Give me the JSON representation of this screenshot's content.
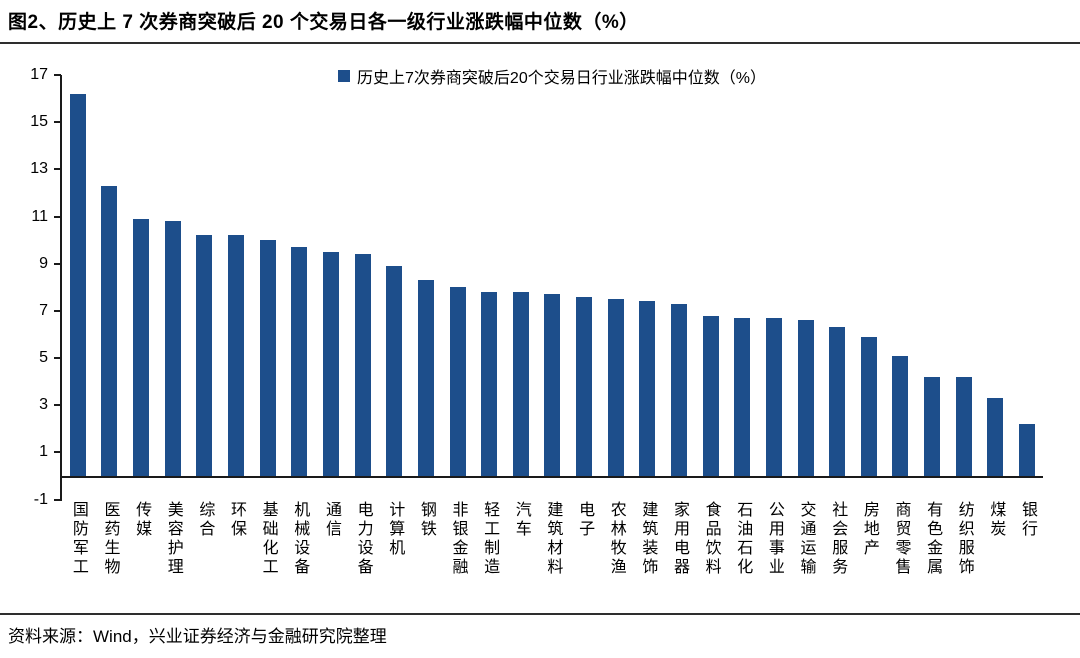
{
  "title": "图2、历史上 7 次券商突破后 20 个交易日各一级行业涨跌幅中位数（%）",
  "source": "资料来源：Wind，兴业证券经济与金融研究院整理",
  "colors": {
    "bar": "#1d4e8b",
    "axis": "#1a1a1a",
    "rule": "#2e2e2e"
  },
  "chart_data": {
    "type": "bar",
    "title": "历史上 7 次券商突破后 20 个交易日各一级行业涨跌幅中位数（%）",
    "legend": "历史上7次券商突破后20个交易日行业涨跌幅中位数（%）",
    "legend_position": "top-center",
    "grid": false,
    "xlabel": "",
    "ylabel": "",
    "ylim": [
      -1,
      17
    ],
    "y_ticks": [
      17,
      15,
      13,
      11,
      9,
      7,
      5,
      3,
      1,
      -1
    ],
    "categories": [
      "国防军工",
      "医药生物",
      "传媒",
      "美容护理",
      "综合",
      "环保",
      "基础化工",
      "机械设备",
      "通信",
      "电力设备",
      "计算机",
      "钢铁",
      "非银金融",
      "轻工制造",
      "汽车",
      "建筑材料",
      "电子",
      "农林牧渔",
      "建筑装饰",
      "家用电器",
      "食品饮料",
      "石油石化",
      "公用事业",
      "交通运输",
      "社会服务",
      "房地产",
      "商贸零售",
      "有色金属",
      "纺织服饰",
      "煤炭",
      "银行"
    ],
    "values": [
      16.2,
      12.3,
      10.9,
      10.8,
      10.2,
      10.2,
      10.0,
      9.7,
      9.5,
      9.4,
      8.9,
      8.3,
      8.0,
      7.8,
      7.8,
      7.7,
      7.6,
      7.5,
      7.4,
      7.3,
      6.8,
      6.7,
      6.7,
      6.6,
      6.3,
      5.9,
      5.1,
      4.2,
      4.2,
      3.3,
      2.2
    ]
  }
}
